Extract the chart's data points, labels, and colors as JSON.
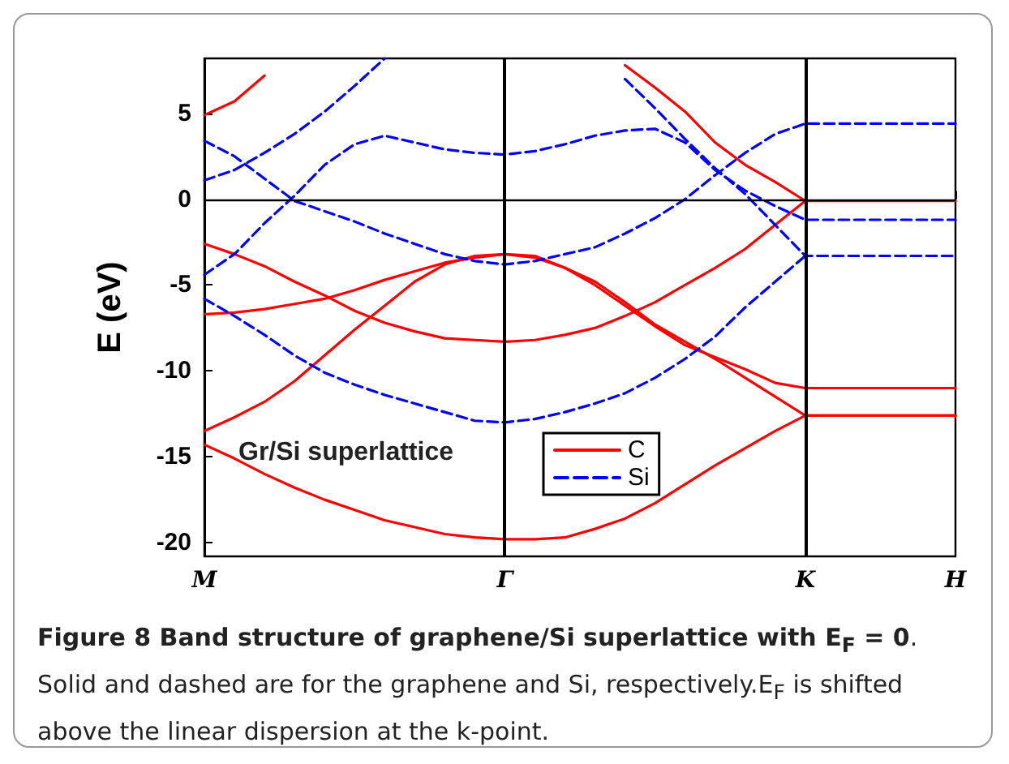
{
  "chart_data": {
    "type": "line",
    "ylabel": "E (eV)",
    "categories": [
      "M",
      null,
      null,
      null,
      null,
      null,
      null,
      null,
      null,
      null,
      "Γ",
      null,
      null,
      null,
      null,
      null,
      null,
      null,
      null,
      null,
      "K",
      null,
      null,
      null,
      null,
      "H"
    ],
    "ylim": [
      -20.8,
      8.2
    ],
    "yticks": [
      -20,
      -15,
      -10,
      -5,
      0,
      5
    ],
    "legend": "bottom",
    "annotations": [
      "Gr/Si superlattice",
      "Figure 8 Band structure of graphene/Si superlattice with E$_{F}$ = 0",
      ". Solid and dashed are for the graphene and Si, respectively.E$_{F}$ is shifted above the linear dispersion at the k-point."
    ],
    "ref_lines": [
      {
        "axis": "x",
        "value": "Γ",
        "color": "#000000"
      },
      {
        "axis": "x",
        "value": "K",
        "color": "#000000"
      },
      {
        "axis": "y",
        "value": 0,
        "color": "#000000"
      }
    ],
    "series": [
      {
        "name": "C",
        "color": "#ff0000",
        "line_style": "solid",
        "values": [
          4.9,
          5.7,
          7.2,
          null,
          null,
          null,
          null,
          null,
          null,
          null,
          null,
          null,
          null,
          null,
          7.8,
          6.5,
          5.1,
          3.3,
          2.0,
          1.0,
          -0.1,
          -0.1,
          -0.1,
          -0.1,
          -0.1,
          -0.1
        ]
      },
      {
        "color": "#ff0000",
        "line_style": "solid",
        "values": [
          -2.6,
          -3.2,
          -3.9,
          -4.8,
          -5.6,
          -6.5,
          -7.2,
          -7.7,
          -8.1,
          -8.2,
          -8.3,
          -8.2,
          -7.9,
          -7.5,
          -6.8,
          -6.0,
          -5.0,
          -4.0,
          -2.9,
          -1.5,
          -0.1,
          null,
          null,
          null,
          null,
          null
        ]
      },
      {
        "color": "#ff0000",
        "line_style": "solid",
        "values": [
          -6.7,
          -6.6,
          -6.4,
          -6.1,
          -5.8,
          -5.3,
          -4.7,
          -4.2,
          -3.7,
          -3.4,
          -3.2,
          -3.3,
          -4.0,
          -5.0,
          -6.2,
          -7.4,
          -8.5,
          -9.2,
          -9.9,
          -10.7,
          -11.0,
          -11.0,
          -11.0,
          -11.0,
          -11.0,
          -11.0
        ]
      },
      {
        "color": "#ff0000",
        "line_style": "solid",
        "values": [
          -13.5,
          -12.7,
          -11.8,
          -10.6,
          -9.1,
          -7.6,
          -6.2,
          -4.8,
          -3.8,
          -3.3,
          -3.2,
          -3.4,
          -4.0,
          -4.8,
          -6.0,
          -7.3,
          -8.3,
          -9.3,
          -10.4,
          -11.5,
          -12.6,
          -12.6,
          -12.6,
          -12.6,
          -12.6,
          -12.6
        ]
      },
      {
        "color": "#ff0000",
        "line_style": "solid",
        "values": [
          -14.3,
          -15.1,
          -16.0,
          -16.8,
          -17.5,
          -18.1,
          -18.7,
          -19.1,
          -19.5,
          -19.7,
          -19.8,
          -19.8,
          -19.7,
          -19.2,
          -18.6,
          -17.7,
          -16.6,
          -15.5,
          -14.5,
          -13.5,
          -12.6,
          -12.6,
          -12.6,
          -12.6,
          -12.6,
          -12.6
        ]
      },
      {
        "name": "Si",
        "color": "#0000ff",
        "line_style": "dashed",
        "values": [
          1.1,
          1.7,
          2.7,
          3.8,
          5.1,
          6.6,
          8.2,
          null,
          null,
          null,
          null,
          null,
          null,
          null,
          7.0,
          5.3,
          3.5,
          1.8,
          0.3,
          -1.5,
          -3.3,
          -3.3,
          -3.3,
          -3.3,
          -3.3,
          -3.3
        ]
      },
      {
        "color": "#0000ff",
        "line_style": "dashed",
        "values": [
          3.4,
          2.5,
          1.2,
          -0.1,
          -0.7,
          -1.3,
          -2.0,
          -2.6,
          -3.2,
          -3.6,
          -3.8,
          -3.6,
          -3.2,
          -2.8,
          -2.0,
          -1.1,
          0.0,
          1.4,
          2.7,
          3.8,
          4.4,
          4.4,
          4.4,
          4.4,
          4.4,
          4.4
        ]
      },
      {
        "color": "#0000ff",
        "line_style": "dashed",
        "values": [
          -4.4,
          -3.2,
          -1.4,
          0.2,
          2.0,
          3.2,
          3.7,
          3.3,
          2.9,
          2.7,
          2.6,
          2.8,
          3.2,
          3.7,
          4.0,
          4.1,
          3.3,
          1.7,
          0.5,
          -0.4,
          -1.2,
          -1.2,
          -1.2,
          -1.2,
          -1.2,
          -1.2
        ]
      },
      {
        "color": "#0000ff",
        "line_style": "dashed",
        "values": [
          -5.8,
          -6.8,
          -7.9,
          -9.1,
          -10.1,
          -10.8,
          -11.4,
          -11.9,
          -12.4,
          -12.9,
          -13.0,
          -12.8,
          -12.4,
          -11.9,
          -11.3,
          -10.4,
          -9.3,
          -8.0,
          -6.3,
          -4.8,
          -3.3,
          null,
          null,
          null,
          null,
          null
        ]
      }
    ]
  }
}
